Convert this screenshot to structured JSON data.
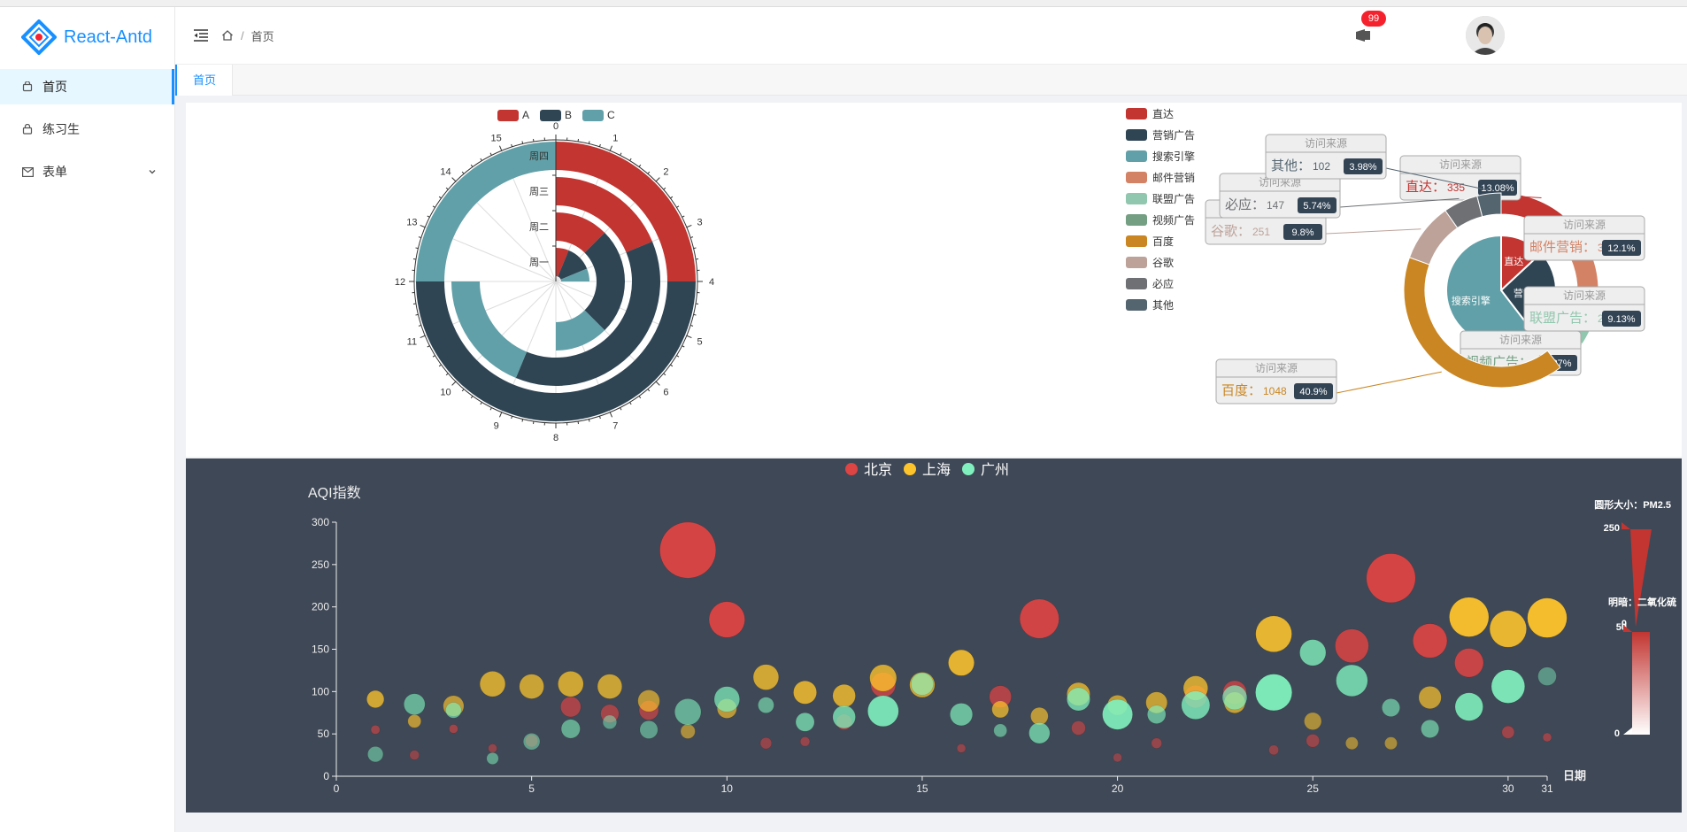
{
  "app": {
    "logo_text": "React-Antd"
  },
  "sidebar": {
    "items": [
      {
        "label": "首页",
        "icon": "home-icon",
        "active": true
      },
      {
        "label": "练习生",
        "icon": "lock-icon",
        "active": false
      },
      {
        "label": "表单",
        "icon": "mail-icon",
        "active": false,
        "expandable": true
      }
    ]
  },
  "header": {
    "breadcrumb": [
      "首页"
    ],
    "notification_count": "99"
  },
  "tabs": [
    {
      "label": "首页",
      "active": true
    }
  ],
  "colors": {
    "accent": "#1890ff",
    "red": "#c23531",
    "navy": "#2f4554",
    "teal": "#61a0a8",
    "panel_dark": "#404a59"
  },
  "chart_data": [
    {
      "type": "polar-stacked-bar",
      "legend": [
        "A",
        "B",
        "C"
      ],
      "radius_categories": [
        "周一",
        "周二",
        "周三",
        "周四"
      ],
      "angle_ticks": [
        "0",
        "1",
        "2",
        "3",
        "4",
        "5",
        "6",
        "7",
        "8",
        "9",
        "10",
        "11",
        "12",
        "13",
        "14",
        "15"
      ],
      "angle_max": 16,
      "series": [
        {
          "name": "A",
          "values": [
            1,
            2,
            3,
            4
          ]
        },
        {
          "name": "B",
          "values": [
            2,
            4,
            6,
            8
          ]
        },
        {
          "name": "C",
          "values": [
            1,
            2,
            3,
            4
          ]
        }
      ]
    },
    {
      "type": "pie",
      "tooltip_title": "访问来源",
      "legend": [
        "直达",
        "营销广告",
        "搜索引擎",
        "邮件营销",
        "联盟广告",
        "视频广告",
        "百度",
        "谷歌",
        "必应",
        "其他"
      ],
      "inner": [
        {
          "name": "直达",
          "value": 335
        },
        {
          "name": "营销广告",
          "value": 679
        },
        {
          "name": "搜索引擎",
          "value": 1548
        }
      ],
      "outer": [
        {
          "name": "直达",
          "value": 335,
          "percent": "13.08%"
        },
        {
          "name": "邮件营销",
          "value": 310,
          "percent": "12.1%"
        },
        {
          "name": "联盟广告",
          "value": 234,
          "percent": "9.13%"
        },
        {
          "name": "视频广告",
          "value": 135,
          "percent": "5.27%"
        },
        {
          "name": "百度",
          "value": 1048,
          "percent": "40.9%"
        },
        {
          "name": "谷歌",
          "value": 251,
          "percent": "9.8%"
        },
        {
          "name": "必应",
          "value": 147,
          "percent": "5.74%"
        },
        {
          "name": "其他",
          "value": 102,
          "percent": "3.98%"
        }
      ]
    },
    {
      "type": "scatter",
      "legend": [
        "北京",
        "上海",
        "广州"
      ],
      "ylabel": "AQI指数",
      "xlabel": "日期",
      "xlim": [
        0,
        31
      ],
      "ylim": [
        0,
        300
      ],
      "xticks": [
        0,
        5,
        10,
        15,
        20,
        25,
        30,
        31
      ],
      "yticks": [
        0,
        50,
        100,
        150,
        200,
        250,
        300
      ],
      "visual_map_size": {
        "title": "圆形大小：PM2.5",
        "max": "250",
        "min": "0"
      },
      "visual_map_color": {
        "title": "明暗：二氧化硫",
        "max": "50",
        "min": "0"
      },
      "series": [
        {
          "name": "北京",
          "points": [
            [
              1,
              55,
              9,
              56
            ],
            [
              2,
              25,
              11,
              21
            ],
            [
              3,
              56,
              7,
              63
            ],
            [
              4,
              33,
              7,
              29
            ],
            [
              5,
              42,
              24,
              44
            ],
            [
              6,
              82,
              58,
              90
            ],
            [
              7,
              74,
              49,
              77
            ],
            [
              8,
              78,
              55,
              80
            ],
            [
              9,
              267,
              216,
              280
            ],
            [
              10,
              185,
              127,
              216
            ],
            [
              11,
              39,
              19,
              38
            ],
            [
              12,
              41,
              11,
              40
            ],
            [
              13,
              64,
              38,
              74
            ],
            [
              14,
              108,
              79,
              120
            ],
            [
              15,
              108,
              63,
              116
            ],
            [
              16,
              33,
              6,
              29
            ],
            [
              17,
              94,
              66,
              110
            ],
            [
              18,
              186,
              142,
              192
            ],
            [
              19,
              57,
              31,
              54
            ],
            [
              20,
              22,
              8,
              17
            ],
            [
              21,
              39,
              15,
              36
            ],
            [
              22,
              94,
              69,
              114
            ],
            [
              23,
              99,
              73,
              110
            ],
            [
              24,
              31,
              12,
              30
            ],
            [
              25,
              42,
              27,
              43
            ],
            [
              26,
              154,
              117,
              157
            ],
            [
              27,
              234,
              185,
              230
            ],
            [
              28,
              160,
              120,
              186
            ],
            [
              29,
              134,
              96,
              165
            ],
            [
              30,
              52,
              24,
              60
            ],
            [
              31,
              46,
              5,
              49
            ]
          ]
        },
        {
          "name": "上海",
          "points": [
            [
              1,
              91,
              45,
              125
            ],
            [
              2,
              65,
              27,
              78
            ],
            [
              3,
              83,
              60,
              84
            ],
            [
              4,
              109,
              81,
              121
            ],
            [
              5,
              106,
              77,
              114
            ],
            [
              6,
              109,
              81,
              121
            ],
            [
              7,
              106,
              77,
              114
            ],
            [
              8,
              89,
              65,
              78
            ],
            [
              9,
              53,
              33,
              47
            ],
            [
              10,
              80,
              55,
              80
            ],
            [
              11,
              117,
              81,
              124
            ],
            [
              12,
              99,
              71,
              142
            ],
            [
              13,
              95,
              69,
              130
            ],
            [
              14,
              116,
              87,
              131
            ],
            [
              15,
              108,
              80,
              121
            ],
            [
              16,
              134,
              83,
              167
            ],
            [
              17,
              79,
              43,
              107
            ],
            [
              18,
              71,
              46,
              89
            ],
            [
              19,
              97,
              71,
              113
            ],
            [
              20,
              84,
              57,
              91
            ],
            [
              21,
              87,
              63,
              101
            ],
            [
              22,
              104,
              77,
              119
            ],
            [
              23,
              87,
              62,
              100
            ],
            [
              24,
              168,
              128,
              172
            ],
            [
              25,
              65,
              45,
              51
            ],
            [
              26,
              39,
              24,
              38
            ],
            [
              27,
              39,
              24,
              39
            ],
            [
              28,
              93,
              68,
              96
            ],
            [
              29,
              188,
              143,
              197
            ],
            [
              30,
              174,
              131,
              174
            ],
            [
              31,
              187,
              143,
              201
            ]
          ]
        },
        {
          "name": "广州",
          "points": [
            [
              1,
              26,
              37,
              27
            ],
            [
              2,
              85,
              62,
              71
            ],
            [
              3,
              78,
              38,
              74
            ],
            [
              4,
              21,
              21,
              35
            ],
            [
              5,
              41,
              42,
              24
            ],
            [
              6,
              56,
              52,
              54
            ],
            [
              7,
              64,
              30,
              18
            ],
            [
              8,
              55,
              48,
              25
            ],
            [
              9,
              76,
              85,
              62
            ],
            [
              10,
              91,
              81,
              104
            ],
            [
              11,
              84,
              39,
              60
            ],
            [
              12,
              64,
              51,
              101
            ],
            [
              13,
              70,
              69,
              120
            ],
            [
              14,
              77,
              105,
              178
            ],
            [
              15,
              109,
              68,
              87
            ],
            [
              16,
              73,
              68,
              97
            ],
            [
              17,
              54,
              27,
              47
            ],
            [
              18,
              51,
              61,
              97
            ],
            [
              19,
              91,
              71,
              121
            ],
            [
              20,
              73,
              102,
              182
            ],
            [
              21,
              73,
              50,
              76
            ],
            [
              22,
              84,
              94,
              140
            ],
            [
              23,
              93,
              77,
              104
            ],
            [
              24,
              99,
              130,
              227
            ],
            [
              25,
              146,
              84,
              139
            ],
            [
              26,
              113,
              108,
              137
            ],
            [
              27,
              81,
              48,
              62
            ],
            [
              28,
              56,
              48,
              68
            ],
            [
              29,
              82,
              92,
              174
            ],
            [
              30,
              106,
              116,
              188
            ],
            [
              31,
              118,
              50,
              0
            ]
          ]
        }
      ]
    }
  ]
}
